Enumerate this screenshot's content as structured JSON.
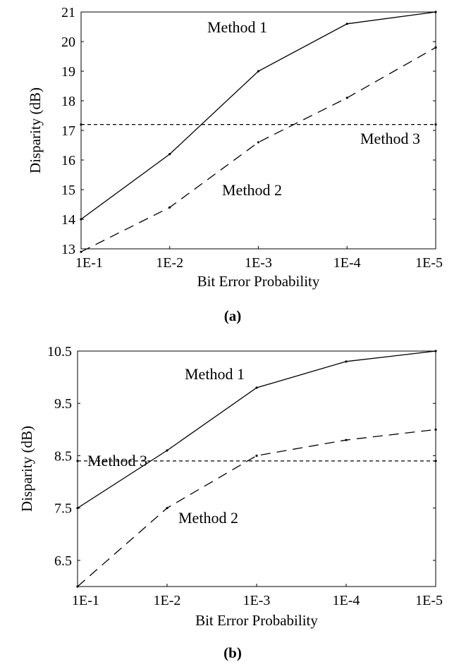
{
  "chart_data": [
    {
      "type": "line",
      "panel_label": "(a)",
      "xlabel": "Bit Error Probability",
      "ylabel": "Disparity (dB)",
      "x_scale": "log-reversed",
      "x_ticks": [
        "1E-1",
        "1E-2",
        "1E-3",
        "1E-4",
        "1E-5"
      ],
      "x_tick_values": [
        0.1,
        0.01,
        0.001,
        0.0001,
        1e-05
      ],
      "xlim": [
        0.1,
        1e-05
      ],
      "y_ticks": [
        "13",
        "14",
        "15",
        "16",
        "17",
        "18",
        "19",
        "20",
        "21"
      ],
      "ylim": [
        13,
        21
      ],
      "grid": false,
      "series": [
        {
          "style": "solid",
          "x": [
            0.1,
            0.01,
            0.001,
            0.0001,
            1e-05
          ],
          "y": [
            14.0,
            16.2,
            19.0,
            20.6,
            21.0
          ]
        },
        {
          "style": "dashed",
          "x": [
            0.1,
            0.01,
            0.001,
            0.0001,
            1e-05
          ],
          "y": [
            12.9,
            14.4,
            16.6,
            18.1,
            19.8
          ]
        },
        {
          "style": "dotted",
          "x": [
            0.1,
            1e-05
          ],
          "y": [
            17.2,
            17.2
          ]
        }
      ],
      "annotations": [
        {
          "text": "Method 1",
          "x": 0.001,
          "y": 20.0
        },
        {
          "text": "Method 3",
          "x": 0.0001,
          "y": 16.5
        },
        {
          "text": "Method 2",
          "x": 0.0025,
          "y": 15.0
        }
      ]
    },
    {
      "type": "line",
      "panel_label": "(b)",
      "xlabel": "Bit Error Probability",
      "ylabel": "Disparity (dB)",
      "x_scale": "log-reversed",
      "x_ticks": [
        "1E-1",
        "1E-2",
        "1E-3",
        "1E-4",
        "1E-5"
      ],
      "x_tick_values": [
        0.1,
        0.01,
        0.001,
        0.0001,
        1e-05
      ],
      "xlim": [
        0.1,
        1e-05
      ],
      "y_ticks": [
        "6.5",
        "7.5",
        "8.5",
        "9.5",
        "10.5"
      ],
      "y_tick_values": [
        6.5,
        7.5,
        8.5,
        9.5,
        10.5
      ],
      "ylim": [
        6.0,
        10.5
      ],
      "grid": false,
      "series": [
        {
          "style": "solid",
          "x": [
            0.1,
            0.01,
            0.001,
            0.0001,
            1e-05
          ],
          "y": [
            7.5,
            8.6,
            9.8,
            10.3,
            10.5
          ]
        },
        {
          "style": "dashed",
          "x": [
            0.1,
            0.01,
            0.001,
            0.0001,
            1e-05
          ],
          "y": [
            6.0,
            7.5,
            8.5,
            8.8,
            9.0
          ]
        },
        {
          "style": "dotted",
          "x": [
            0.1,
            1e-05
          ],
          "y": [
            8.4,
            8.4
          ]
        }
      ],
      "annotations": [
        {
          "text": "Method 1",
          "x": 0.00265,
          "y": 10.1
        },
        {
          "text": "Method 3",
          "x": 0.05,
          "y": 8.6
        },
        {
          "text": "Method 2",
          "x": 0.0025,
          "y": 7.2
        }
      ]
    }
  ]
}
